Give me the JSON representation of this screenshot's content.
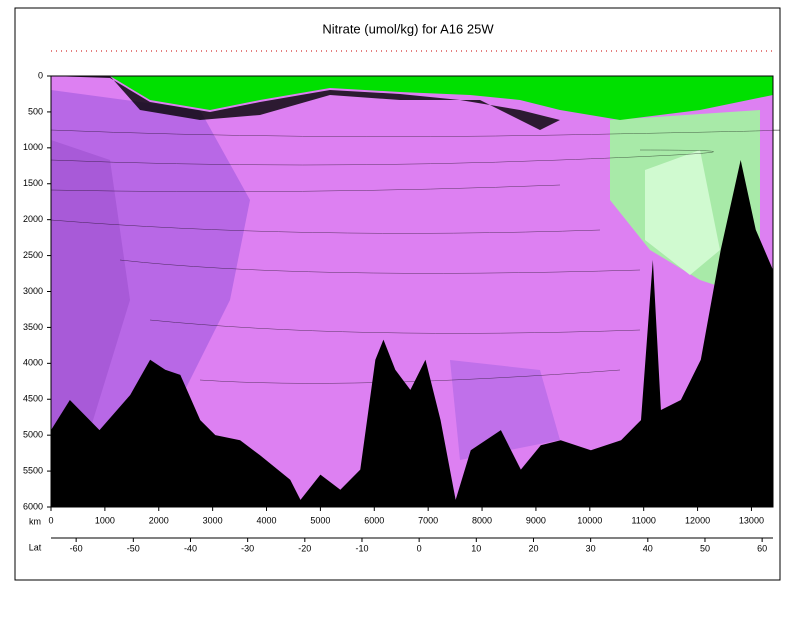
{
  "chart_data": {
    "type": "section",
    "title": "Nitrate (umol/kg) for A16 25W",
    "x_label": "km",
    "x2_label": "Lat",
    "xlim": [
      0,
      13400
    ],
    "xticks": [
      0,
      1000,
      2000,
      3000,
      4000,
      5000,
      6000,
      7000,
      8000,
      9000,
      10000,
      11000,
      12000,
      13000
    ],
    "x2lim": [
      -64.4,
      61.9
    ],
    "x2ticks": [
      -60,
      -50,
      -40,
      -30,
      -20,
      -10,
      0,
      10,
      20,
      30,
      40,
      50,
      60
    ],
    "ylim": [
      0,
      6000
    ],
    "yticks": [
      0,
      500,
      1000,
      1500,
      2000,
      2500,
      3000,
      3500,
      4000,
      4500,
      5000,
      5500,
      6000
    ],
    "y_inverted": true,
    "bottom": {
      "color": "#000000",
      "km": [
        0,
        350,
        900,
        1470,
        1840,
        2120,
        2400,
        2770,
        3050,
        3510,
        3880,
        4440,
        4630,
        5000,
        5370,
        5740,
        6020,
        6170,
        6390,
        6670,
        6950,
        7230,
        7510,
        7790,
        8350,
        8720,
        9090,
        9460,
        10020,
        10580,
        10950,
        11170,
        11320,
        11690,
        12060,
        12430,
        12800,
        13080,
        13400
      ],
      "depth": [
        4930,
        4510,
        4930,
        4440,
        3950,
        4090,
        4160,
        4790,
        5000,
        5070,
        5280,
        5620,
        5900,
        5550,
        5760,
        5480,
        3950,
        3670,
        4090,
        4370,
        3950,
        4790,
        5900,
        5210,
        4930,
        5480,
        5140,
        5070,
        5210,
        5070,
        4790,
        2560,
        4650,
        4510,
        3950,
        2420,
        1170,
        2140,
        2700
      ]
    }
  }
}
